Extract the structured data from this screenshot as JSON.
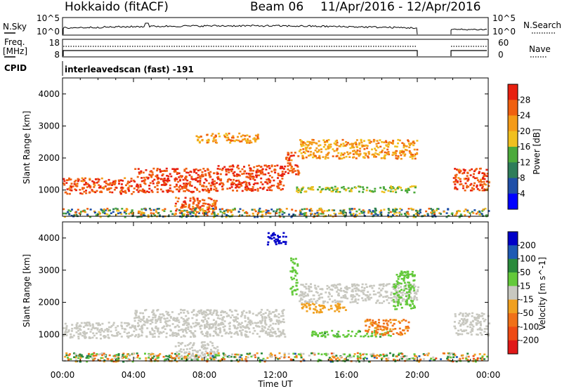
{
  "header": {
    "station": "Hokkaido (fitACF)",
    "beam": "Beam 06",
    "dates": "11/Apr/2016 - 12/Apr/2016"
  },
  "nsky_panel": {
    "left_label": "N.Sky",
    "right_label": "N.Search",
    "left_ticks": [
      "10^5",
      "10^0"
    ],
    "right_ticks": [
      "10^5",
      "10^0"
    ]
  },
  "freq_panel": {
    "left_label_line1": "Freq.",
    "left_label_line2": "[MHz]",
    "right_label": "Nave",
    "left_ticks": [
      "18",
      "8"
    ],
    "right_ticks": [
      "60",
      "0"
    ]
  },
  "cpid": {
    "label": "CPID",
    "mode": "interleavedscan (fast) -191"
  },
  "axes": {
    "ylabel": "Slant Range [km]",
    "xlabel": "Time UT",
    "x_ticks": [
      "00:00",
      "04:00",
      "08:00",
      "12:00",
      "16:00",
      "20:00",
      "00:00"
    ],
    "y_ticks": [
      "1000",
      "2000",
      "3000",
      "4000"
    ],
    "x_range_hours": [
      0,
      24
    ],
    "y_range_km": [
      180,
      4500
    ]
  },
  "colors": {
    "power_scale": [
      "#0000ff",
      "#1f4fa8",
      "#2e7d5a",
      "#4caa3c",
      "#f0c020",
      "#f49b18",
      "#f06010",
      "#e82010"
    ],
    "velocity_scale": [
      "#0000c8",
      "#1e5ab4",
      "#2a8a3c",
      "#63c93a",
      "#c8c8c0",
      "#f0a020",
      "#f07018",
      "#ee4a14",
      "#e01818"
    ]
  },
  "chart_data": [
    {
      "type": "heatmap",
      "name": "",
      "colorbar_label": "Power [dB]",
      "colorbar_ticks": [
        "4",
        "8",
        "12",
        "16",
        "20",
        "24",
        "28"
      ],
      "colorbar_range": [
        0,
        32
      ],
      "x_range_hours": [
        0,
        24
      ],
      "y_range_km": [
        180,
        4500
      ],
      "regions": [
        {
          "t": [
            0.0,
            4.0
          ],
          "r": [
            900,
            1400
          ],
          "value": 27
        },
        {
          "t": [
            4.0,
            8.5
          ],
          "r": [
            950,
            1700
          ],
          "value": 28
        },
        {
          "t": [
            8.5,
            12.5
          ],
          "r": [
            1000,
            1800
          ],
          "value": 28
        },
        {
          "t": [
            12.5,
            13.3
          ],
          "r": [
            1500,
            2200
          ],
          "value": 27
        },
        {
          "t": [
            13.3,
            20.0
          ],
          "r": [
            2000,
            2600
          ],
          "value": 22
        },
        {
          "t": [
            13.0,
            20.0
          ],
          "r": [
            950,
            1150
          ],
          "value": 16
        },
        {
          "t": [
            6.3,
            8.7
          ],
          "r": [
            250,
            800
          ],
          "value": 27
        },
        {
          "t": [
            7.5,
            11.0
          ],
          "r": [
            2500,
            2800
          ],
          "value": 22
        },
        {
          "t": [
            22.0,
            24.0
          ],
          "r": [
            1000,
            1700
          ],
          "value": 27
        },
        {
          "t": [
            0.0,
            24.0
          ],
          "r": [
            180,
            450
          ],
          "value": 14
        }
      ]
    },
    {
      "type": "heatmap",
      "name": "",
      "colorbar_label": "Velocity [m s^-1]",
      "colorbar_ticks": [
        "200",
        "100",
        "50",
        "15",
        "-15",
        "-50",
        "-100",
        "-200"
      ],
      "colorbar_range": [
        -250,
        250
      ],
      "x_range_hours": [
        0,
        24
      ],
      "y_range_km": [
        180,
        4500
      ],
      "regions": [
        {
          "t": [
            0.0,
            4.0
          ],
          "r": [
            900,
            1400
          ],
          "value": 0
        },
        {
          "t": [
            4.0,
            12.5
          ],
          "r": [
            950,
            1800
          ],
          "value": 0
        },
        {
          "t": [
            13.3,
            20.0
          ],
          "r": [
            2000,
            2600
          ],
          "value": 0
        },
        {
          "t": [
            12.8,
            13.2
          ],
          "r": [
            2200,
            3400
          ],
          "value": 60
        },
        {
          "t": [
            18.6,
            19.8
          ],
          "r": [
            1800,
            3000
          ],
          "value": 60
        },
        {
          "t": [
            14.0,
            18.5
          ],
          "r": [
            950,
            1150
          ],
          "value": 70
        },
        {
          "t": [
            17.0,
            19.5
          ],
          "r": [
            1000,
            1500
          ],
          "value": -90
        },
        {
          "t": [
            13.3,
            16.0
          ],
          "r": [
            1700,
            2000
          ],
          "value": -50
        },
        {
          "t": [
            11.5,
            12.6
          ],
          "r": [
            3800,
            4200
          ],
          "value": 220
        },
        {
          "t": [
            6.3,
            8.7
          ],
          "r": [
            250,
            800
          ],
          "value": 0
        },
        {
          "t": [
            22.0,
            24.0
          ],
          "r": [
            1000,
            1700
          ],
          "value": 0
        },
        {
          "t": [
            0.0,
            24.0
          ],
          "r": [
            180,
            450
          ],
          "value": 0
        }
      ]
    }
  ]
}
